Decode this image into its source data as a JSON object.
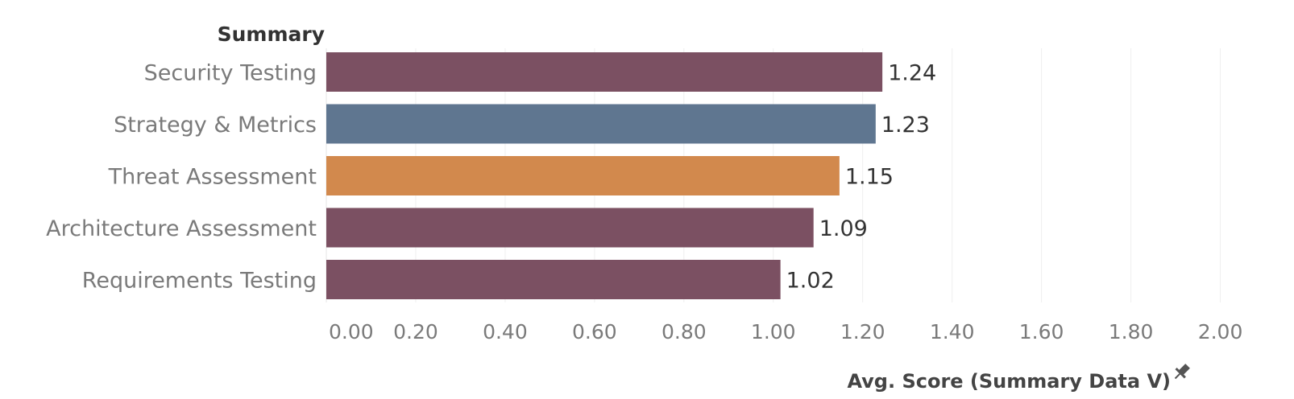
{
  "chart_data": {
    "type": "bar",
    "orientation": "horizontal",
    "row_header": "Summary",
    "categories": [
      "Security Testing",
      "Strategy & Metrics",
      "Threat Assessment",
      "Architecture Assessment",
      "Requirements Testing"
    ],
    "values": [
      1.244,
      1.229,
      1.148,
      1.09,
      1.016
    ],
    "value_labels": [
      "1.24",
      "1.23",
      "1.15",
      "1.09",
      "1.02"
    ],
    "bar_colors": [
      "#7b5062",
      "#5f7690",
      "#d2894d",
      "#7b5062",
      "#7b5062"
    ],
    "xlabel": "Avg. Score (Summary Data V)",
    "xlim": [
      0,
      2.1
    ],
    "x_ticks": [
      "0.00",
      "0.20",
      "0.40",
      "0.60",
      "0.80",
      "1.00",
      "1.20",
      "1.40",
      "1.60",
      "1.80",
      "2.00"
    ],
    "grid": "vertical",
    "axis_pin_icon": "pin-icon"
  }
}
